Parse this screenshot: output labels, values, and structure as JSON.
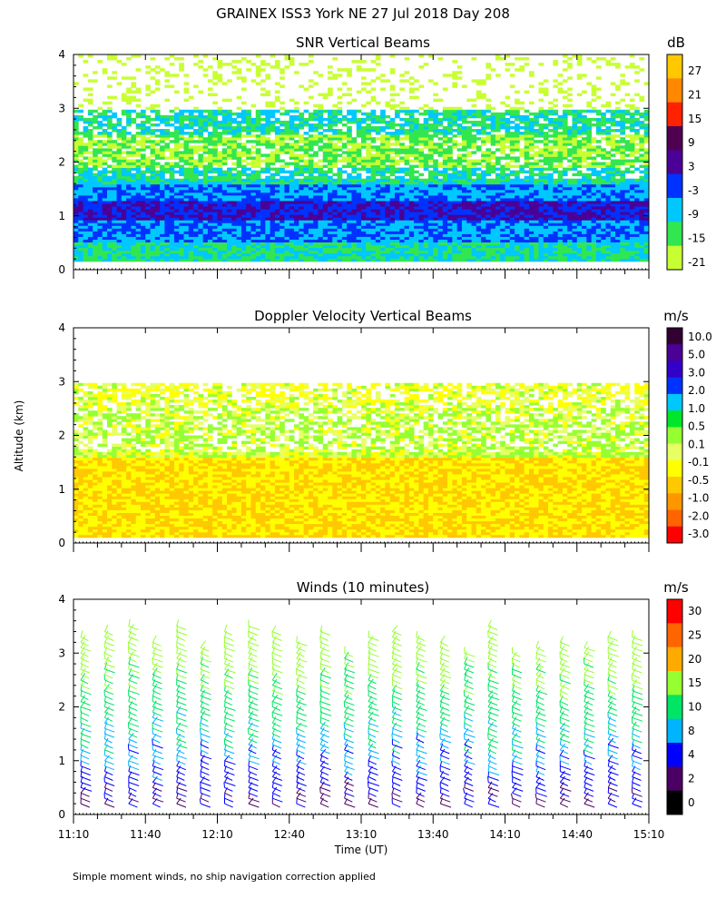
{
  "figure": {
    "title": "GRAINEX ISS3 York NE  27 Jul 2018 Day 208",
    "ylabel": "Altitude (km)",
    "xlabel": "Time (UT)",
    "footnote": "Simple moment winds, no ship navigation correction applied"
  },
  "colors": {
    "snr": [
      "#c8ff32",
      "#32e650",
      "#00c8ff",
      "#0032ff",
      "#4b0096",
      "#500050",
      "#ff2200",
      "#ff8800",
      "#ffc800"
    ],
    "doppler": [
      "#ff0000",
      "#ff6400",
      "#ff9600",
      "#ffc800",
      "#ffff00",
      "#e6ff64",
      "#96ff32",
      "#00e628",
      "#00c8ff",
      "#0032ff",
      "#3200c8",
      "#4b0096",
      "#320032"
    ],
    "winds": [
      "#000000",
      "#4b0064",
      "#0000ff",
      "#00b4ff",
      "#00e664",
      "#96ff32",
      "#ffaa00",
      "#ff6400",
      "#ff0000"
    ]
  },
  "chart_data": [
    {
      "type": "heatmap",
      "title": "SNR Vertical Beams",
      "unit": "dB",
      "colorbar_labels": [
        "27",
        "21",
        "15",
        "9",
        "3",
        "-3",
        "-9",
        "-15",
        "-21"
      ],
      "x_ticks": [
        "11:10",
        "11:40",
        "12:10",
        "12:40",
        "13:10",
        "13:40",
        "14:10",
        "14:40",
        "15:10"
      ],
      "y_ticks": [
        "0",
        "1",
        "2",
        "3",
        "4"
      ],
      "xlim": [
        "11:10",
        "15:10"
      ],
      "ylim": [
        0,
        4
      ],
      "layers": [
        {
          "z": [
            0.15,
            0.5
          ],
          "value": -9
        },
        {
          "z": [
            0.5,
            0.9
          ],
          "value": -3
        },
        {
          "z": [
            0.9,
            1.3
          ],
          "value": 3
        },
        {
          "z": [
            1.3,
            1.6
          ],
          "value": -3
        },
        {
          "z": [
            1.6,
            1.9
          ],
          "value": -9
        },
        {
          "z": [
            1.9,
            2.5
          ],
          "value": -15
        },
        {
          "z": [
            2.5,
            2.95
          ],
          "value": -9
        },
        {
          "z": [
            2.95,
            4.0
          ],
          "value": -21
        }
      ]
    },
    {
      "type": "heatmap",
      "title": "Doppler Velocity Vertical Beams",
      "unit": "m/s",
      "colorbar_labels": [
        "10.0",
        "5.0",
        "3.0",
        "2.0",
        "1.0",
        "0.5",
        "0.1",
        "-0.1",
        "-0.5",
        "-1.0",
        "-2.0",
        "-3.0"
      ],
      "x_ticks": [
        "11:10",
        "11:40",
        "12:10",
        "12:40",
        "13:10",
        "13:40",
        "14:10",
        "14:40",
        "15:10"
      ],
      "y_ticks": [
        "0",
        "1",
        "2",
        "3",
        "4"
      ],
      "xlim": [
        "11:10",
        "15:10"
      ],
      "ylim": [
        0,
        4
      ],
      "layers": [
        {
          "z": [
            0.1,
            1.6
          ],
          "value": -0.5
        },
        {
          "z": [
            1.6,
            2.5
          ],
          "value": 0.1
        },
        {
          "z": [
            2.5,
            3.0
          ],
          "value": -0.1
        }
      ]
    },
    {
      "type": "scatter",
      "title": "Winds (10 minutes)",
      "unit": "m/s",
      "colorbar_labels": [
        "30",
        "25",
        "20",
        "15",
        "10",
        "8",
        "4",
        "2",
        "0"
      ],
      "x_ticks": [
        "11:10",
        "11:40",
        "12:10",
        "12:40",
        "13:10",
        "13:40",
        "14:10",
        "14:40",
        "15:10"
      ],
      "y_ticks": [
        "0",
        "1",
        "2",
        "3",
        "4"
      ],
      "xlim": [
        "11:10",
        "15:10"
      ],
      "ylim": [
        0,
        4
      ],
      "profile_times": [
        "11:10",
        "11:20",
        "11:30",
        "11:40",
        "11:50",
        "12:00",
        "12:10",
        "12:20",
        "12:30",
        "12:40",
        "12:50",
        "13:00",
        "13:10",
        "13:20",
        "13:30",
        "13:40",
        "13:50",
        "14:00",
        "14:10",
        "14:20",
        "14:30",
        "14:40",
        "14:50",
        "15:00"
      ],
      "profiles": [
        {
          "z": [
            0.3,
            1.0,
            1.5,
            2.0,
            2.5,
            3.0,
            3.3
          ],
          "speed": [
            4,
            8,
            10,
            12,
            15,
            17,
            18
          ],
          "direction_deg": [
            300,
            290,
            285,
            280,
            275,
            270,
            270
          ]
        }
      ]
    }
  ]
}
